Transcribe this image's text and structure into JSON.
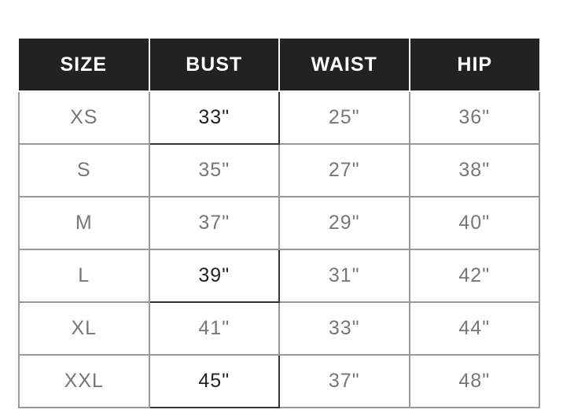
{
  "table": {
    "headers": [
      "SIZE",
      "BUST",
      "WAIST",
      "HIP"
    ],
    "rows": [
      [
        "XS",
        "33\"",
        "25\"",
        "36\""
      ],
      [
        "S",
        "35\"",
        "27\"",
        "38\""
      ],
      [
        "M",
        "37\"",
        "29\"",
        "40\""
      ],
      [
        "L",
        "39\"",
        "31\"",
        "42\""
      ],
      [
        "XL",
        "41\"",
        "33\"",
        "44\""
      ],
      [
        "XXL",
        "45\"",
        "37\"",
        "48\""
      ]
    ]
  }
}
